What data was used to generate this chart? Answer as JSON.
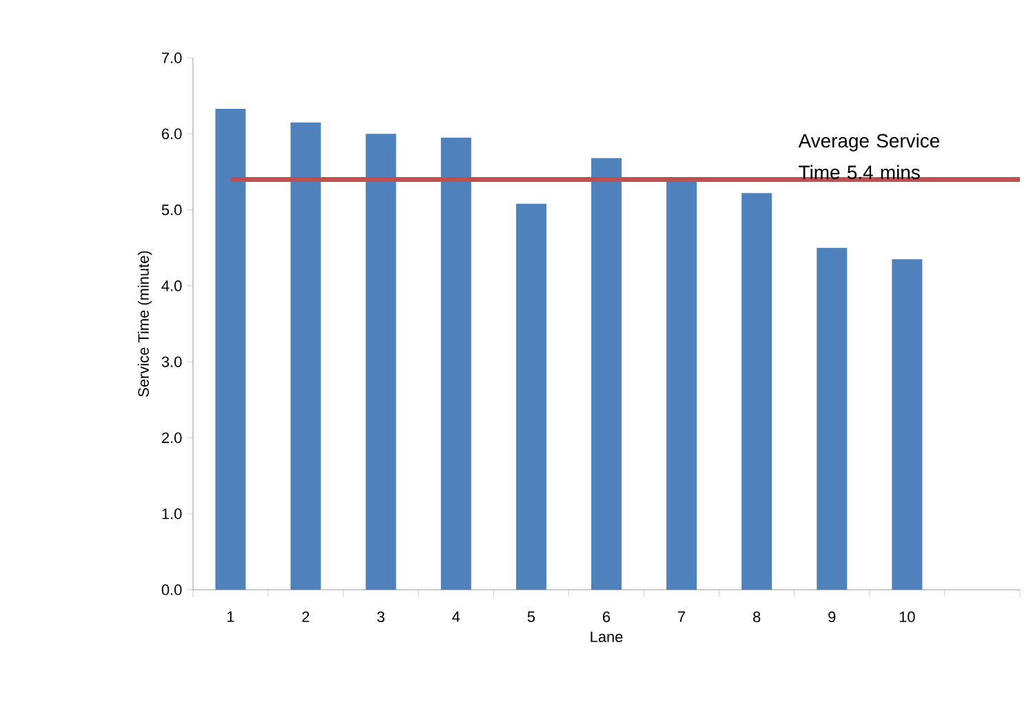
{
  "chart_data": {
    "type": "bar",
    "xlabel": "Lane",
    "ylabel": "Service Time (minute)",
    "categories": [
      "1",
      "2",
      "3",
      "4",
      "5",
      "6",
      "7",
      "8",
      "9",
      "10",
      null
    ],
    "values": [
      6.33,
      6.15,
      6.0,
      5.95,
      5.08,
      5.68,
      5.4,
      5.22,
      4.5,
      4.35,
      null
    ],
    "color": "#4f81bd",
    "ylim": [
      0,
      7
    ],
    "yticks": [
      {
        "value": 0,
        "label": "0.0"
      },
      {
        "value": 1,
        "label": "1.0"
      },
      {
        "value": 2,
        "label": "2.0"
      },
      {
        "value": 3,
        "label": "3.0"
      },
      {
        "value": 4,
        "label": "4.0"
      },
      {
        "value": 5,
        "label": "5.0"
      },
      {
        "value": 6,
        "label": "6.0"
      },
      {
        "value": 7,
        "label": "7.0"
      }
    ],
    "ref_lines": [
      {
        "axis": "y",
        "value": 5.4,
        "label": "Average Service Time 5.4 mins",
        "color": "#c0504d"
      }
    ],
    "grid": false
  }
}
